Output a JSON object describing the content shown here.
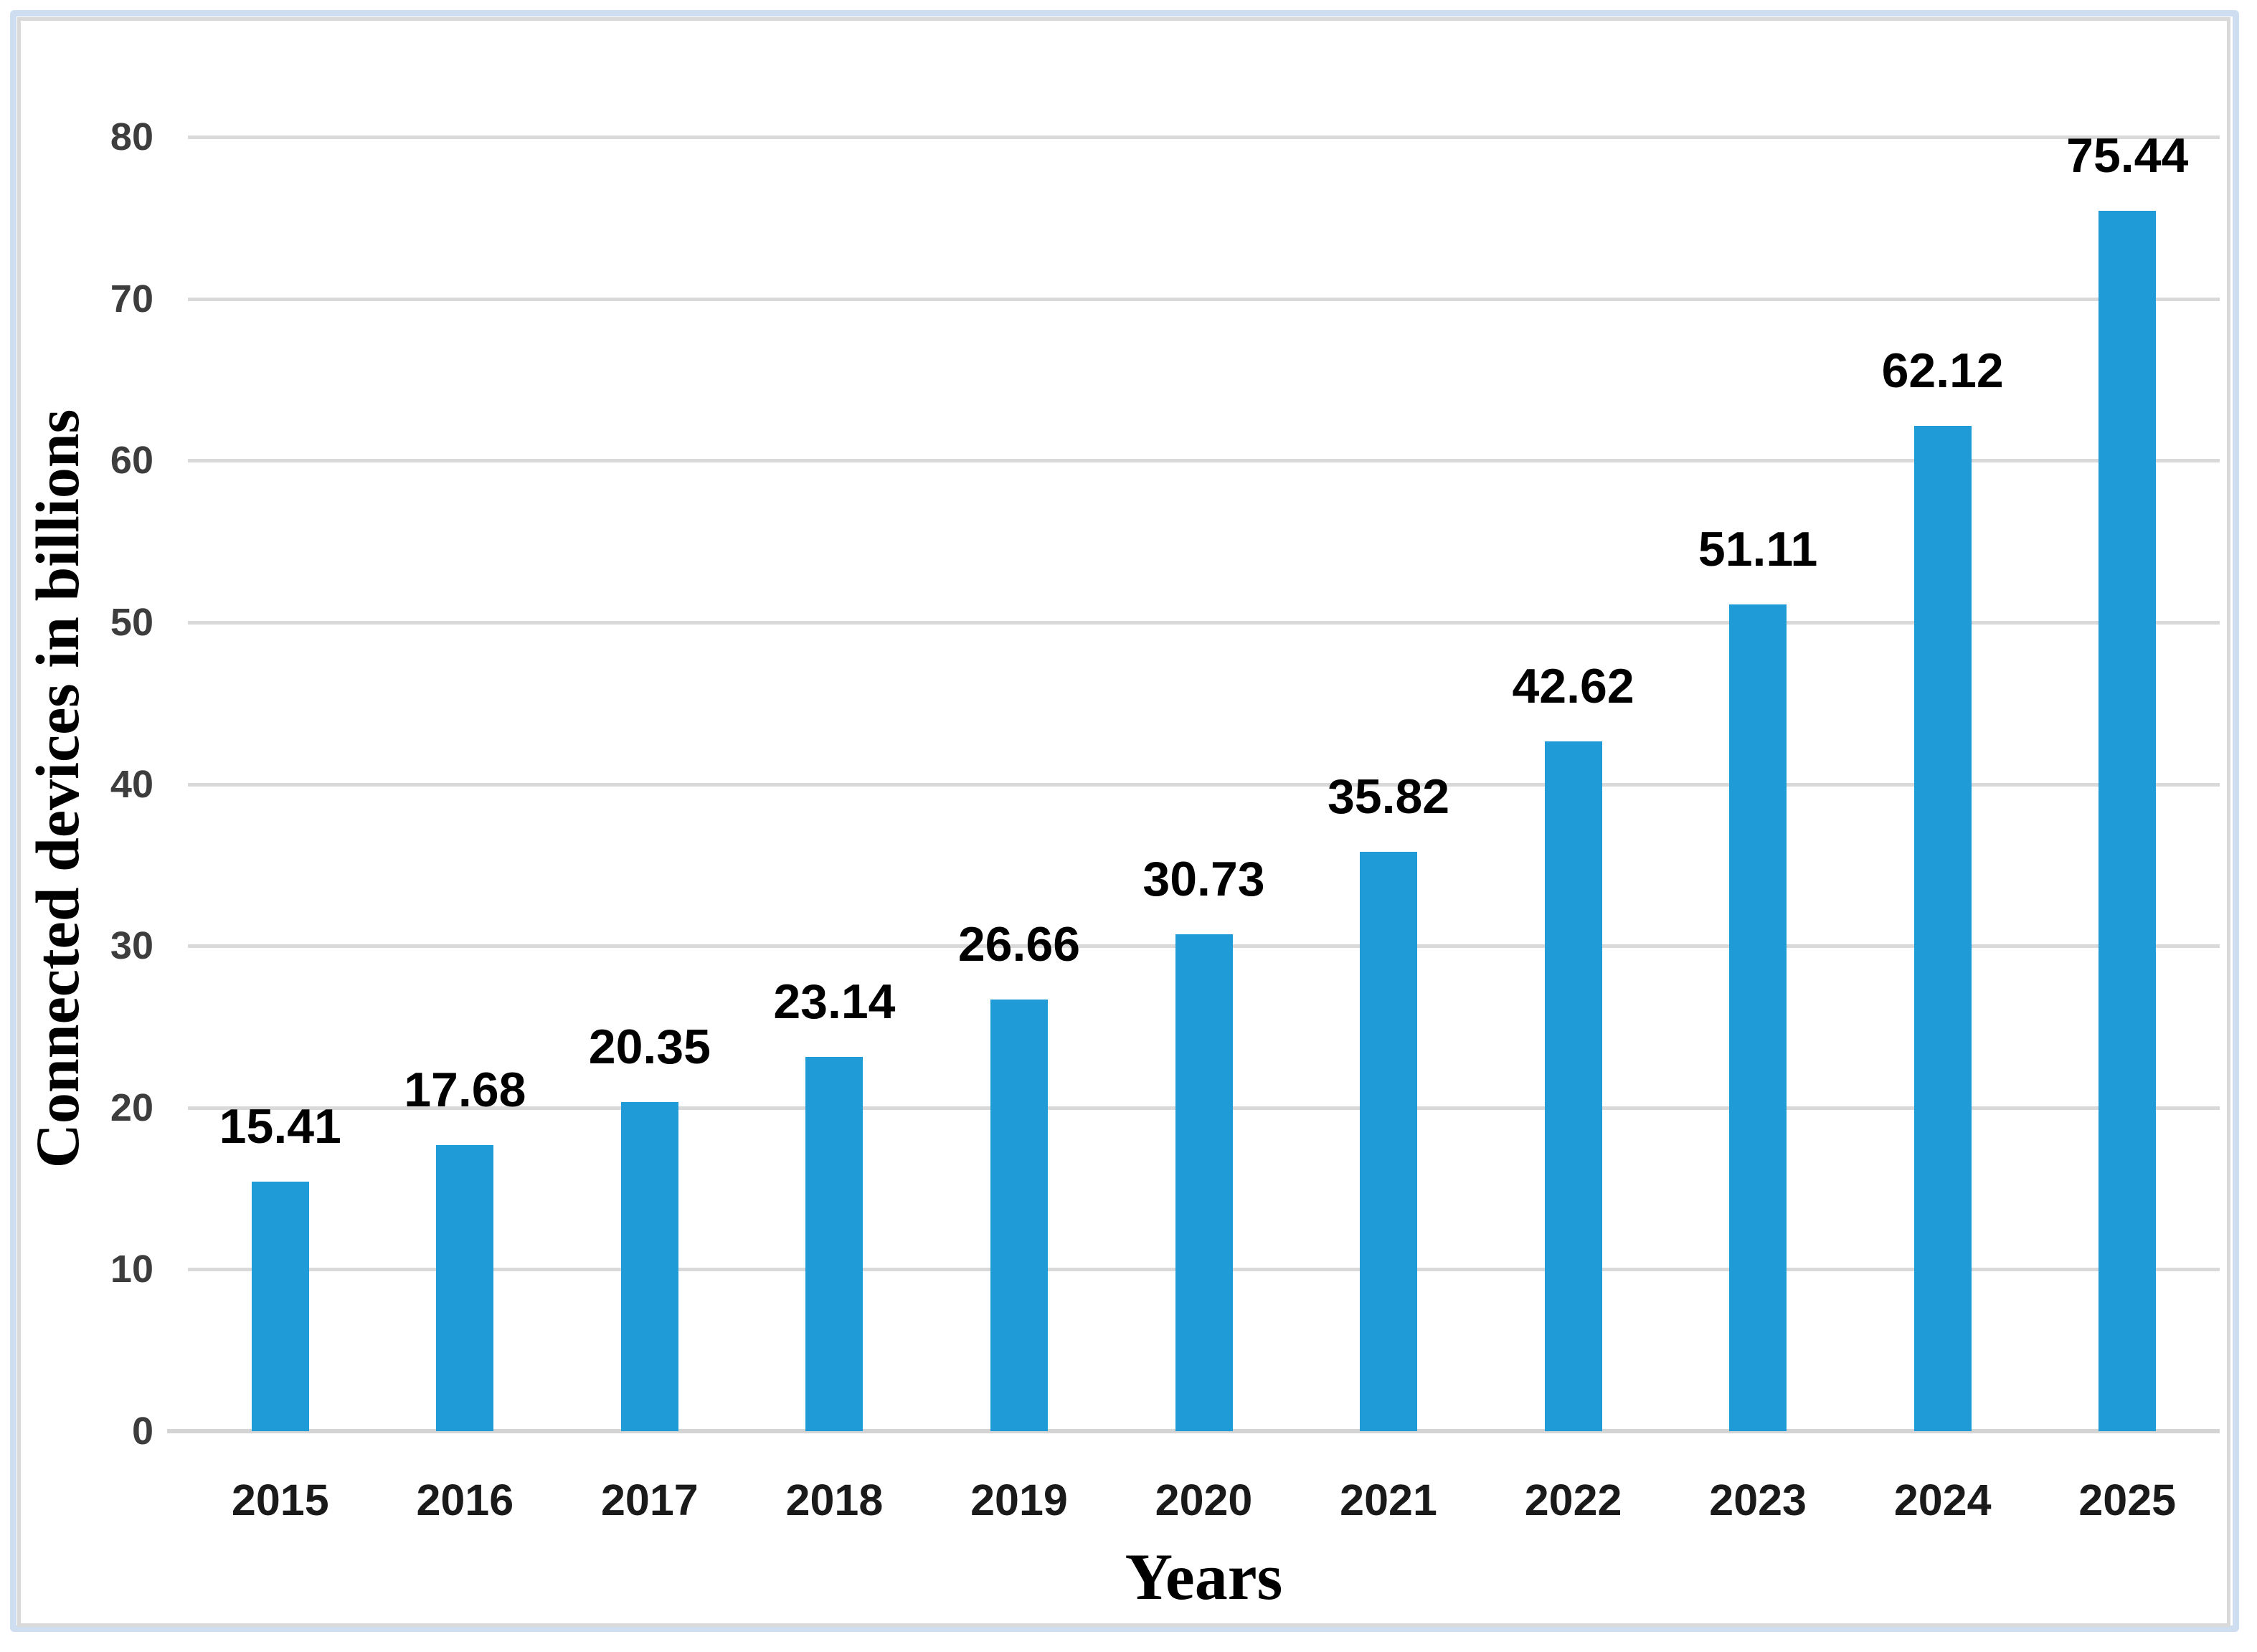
{
  "chart_data": {
    "type": "bar",
    "categories": [
      "2015",
      "2016",
      "2017",
      "2018",
      "2019",
      "2020",
      "2021",
      "2022",
      "2023",
      "2024",
      "2025"
    ],
    "values": [
      15.41,
      17.68,
      20.35,
      23.14,
      26.66,
      30.73,
      35.82,
      42.62,
      51.11,
      62.12,
      75.44
    ],
    "value_labels": [
      "15.41",
      "17.68",
      "20.35",
      "23.14",
      "26.66",
      "30.73",
      "35.82",
      "42.62",
      "51.11",
      "62.12",
      "75.44"
    ],
    "title": "",
    "xlabel": "Years",
    "ylabel": "Connected devices in billions",
    "ylim": [
      0,
      80
    ],
    "yticks": [
      0,
      10,
      20,
      30,
      40,
      50,
      60,
      70,
      80
    ],
    "grid": "horizontal",
    "legend_position": "none",
    "bar_color": "#1f9cd8",
    "gridline_color": "#d9d9d9",
    "baseline_color": "#d4d4d4",
    "tick_text_color": "#3d3d3d",
    "data_label_color": "#000000",
    "outer_frame_color": "#cfddf0",
    "chart_border_color": "#d9d9d9"
  }
}
